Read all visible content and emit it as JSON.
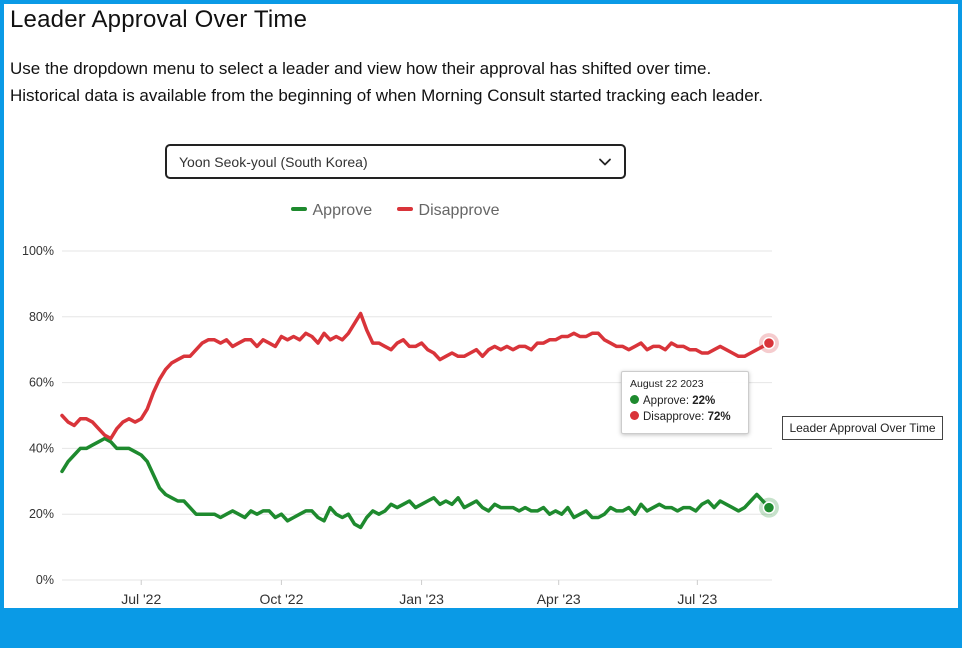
{
  "page": {
    "title": "Leader Approval Over Time",
    "description": "Use the dropdown menu to select a leader and view how their approval has shifted over time. Historical data is available from the beginning of when Morning Consult started tracking each leader.",
    "side_label": "Leader Approval Over Time"
  },
  "dropdown": {
    "selected": "Yoon Seok-youl (South Korea)",
    "icon": "chevron-down-icon"
  },
  "tooltip": {
    "date": "August 22 2023",
    "approve_label": "Approve: ",
    "approve_value": "22%",
    "disapprove_label": "Disapprove: ",
    "disapprove_value": "72%"
  },
  "colors": {
    "approve": "#1e8a2e",
    "disapprove": "#d9343a",
    "grid": "#e6e6e6"
  },
  "chart_data": {
    "type": "line",
    "title": "Leader Approval Over Time",
    "xlabel": "",
    "ylabel": "",
    "ylim": [
      0,
      100
    ],
    "yticks": [
      "0%",
      "20%",
      "40%",
      "60%",
      "80%",
      "100%"
    ],
    "xticks": [
      "Jul '22",
      "Oct '22",
      "Jan '23",
      "Apr '23",
      "Jul '23"
    ],
    "xtick_days": [
      52,
      144,
      236,
      326,
      417
    ],
    "x_range_days": [
      0,
      466
    ],
    "x_unit": "days since 2022-05-10",
    "legend": [
      "Approve",
      "Disapprove"
    ],
    "legend_position": "top-center",
    "x": [
      0,
      4,
      8,
      12,
      16,
      20,
      24,
      28,
      32,
      36,
      40,
      44,
      48,
      52,
      56,
      60,
      64,
      68,
      72,
      76,
      80,
      84,
      88,
      92,
      96,
      100,
      104,
      108,
      112,
      116,
      120,
      124,
      128,
      132,
      136,
      140,
      144,
      148,
      152,
      156,
      160,
      164,
      168,
      172,
      176,
      180,
      184,
      188,
      192,
      196,
      200,
      204,
      208,
      212,
      216,
      220,
      224,
      228,
      232,
      236,
      240,
      244,
      248,
      252,
      256,
      260,
      264,
      268,
      272,
      276,
      280,
      284,
      288,
      292,
      296,
      300,
      304,
      308,
      312,
      316,
      320,
      324,
      328,
      332,
      336,
      340,
      344,
      348,
      352,
      356,
      360,
      364,
      368,
      372,
      376,
      380,
      384,
      388,
      392,
      396,
      400,
      404,
      408,
      412,
      416,
      420,
      424,
      428,
      432,
      436,
      440,
      444,
      448,
      452,
      456,
      460,
      464
    ],
    "series": [
      {
        "name": "Approve",
        "values": [
          33,
          36,
          38,
          40,
          40,
          41,
          42,
          43,
          42,
          40,
          40,
          40,
          39,
          38,
          36,
          32,
          28,
          26,
          25,
          24,
          24,
          22,
          20,
          20,
          20,
          20,
          19,
          20,
          21,
          20,
          19,
          21,
          20,
          21,
          21,
          19,
          20,
          18,
          19,
          20,
          21,
          21,
          19,
          18,
          22,
          20,
          19,
          20,
          17,
          16,
          19,
          21,
          20,
          21,
          23,
          22,
          23,
          24,
          22,
          23,
          24,
          25,
          23,
          24,
          23,
          25,
          22,
          23,
          24,
          22,
          21,
          23,
          22,
          22,
          22,
          21,
          22,
          21,
          21,
          22,
          20,
          21,
          20,
          22,
          19,
          20,
          21,
          19,
          19,
          20,
          22,
          21,
          21,
          22,
          20,
          23,
          21,
          22,
          23,
          22,
          22,
          21,
          22,
          22,
          21,
          23,
          24,
          22,
          24,
          23,
          22,
          21,
          22,
          24,
          26,
          24,
          22
        ]
      },
      {
        "name": "Disapprove",
        "values": [
          50,
          48,
          47,
          49,
          49,
          48,
          46,
          44,
          43,
          46,
          48,
          49,
          48,
          49,
          52,
          57,
          61,
          64,
          66,
          67,
          68,
          68,
          70,
          72,
          73,
          73,
          72,
          73,
          71,
          72,
          73,
          73,
          71,
          73,
          72,
          71,
          74,
          73,
          74,
          73,
          75,
          74,
          72,
          75,
          73,
          74,
          73,
          75,
          78,
          81,
          76,
          72,
          72,
          71,
          70,
          72,
          73,
          71,
          71,
          72,
          70,
          69,
          67,
          68,
          69,
          68,
          68,
          69,
          70,
          68,
          70,
          71,
          70,
          71,
          70,
          71,
          71,
          70,
          72,
          72,
          73,
          73,
          74,
          74,
          75,
          74,
          74,
          75,
          75,
          73,
          72,
          71,
          71,
          70,
          71,
          72,
          70,
          71,
          71,
          70,
          72,
          71,
          71,
          70,
          70,
          69,
          69,
          70,
          71,
          70,
          69,
          68,
          68,
          69,
          70,
          71,
          72
        ]
      }
    ]
  }
}
